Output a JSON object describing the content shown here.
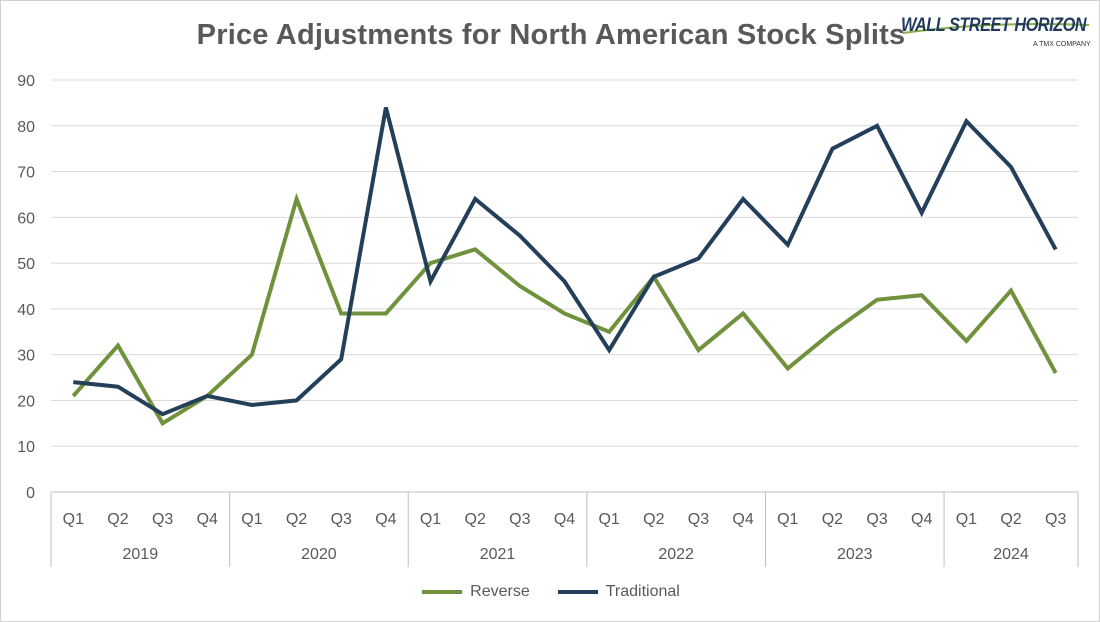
{
  "chart_data": {
    "type": "line",
    "title": "Price Adjustments for North American Stock Splits",
    "categories": [
      "Q1",
      "Q2",
      "Q3",
      "Q4",
      "Q1",
      "Q2",
      "Q3",
      "Q4",
      "Q1",
      "Q2",
      "Q3",
      "Q4",
      "Q1",
      "Q2",
      "Q3",
      "Q4",
      "Q1",
      "Q2",
      "Q3",
      "Q4",
      "Q1",
      "Q2",
      "Q3"
    ],
    "years": [
      {
        "label": "2019",
        "count": 4
      },
      {
        "label": "2020",
        "count": 4
      },
      {
        "label": "2021",
        "count": 4
      },
      {
        "label": "2022",
        "count": 4
      },
      {
        "label": "2023",
        "count": 4
      },
      {
        "label": "2024",
        "count": 3
      }
    ],
    "series": [
      {
        "name": "Reverse",
        "color": "#70923c",
        "values": [
          21,
          32,
          15,
          21,
          30,
          64,
          39,
          39,
          50,
          53,
          45,
          39,
          35,
          47,
          31,
          39,
          27,
          35,
          42,
          43,
          33,
          44,
          26
        ]
      },
      {
        "name": "Traditional",
        "color": "#243f5a",
        "values": [
          24,
          23,
          17,
          21,
          19,
          20,
          29,
          84,
          46,
          64,
          56,
          46,
          31,
          47,
          51,
          64,
          54,
          75,
          80,
          61,
          81,
          71,
          53
        ]
      }
    ],
    "ylim": [
      0,
      90
    ],
    "yticks": [
      0,
      10,
      20,
      30,
      40,
      50,
      60,
      70,
      80,
      90
    ],
    "grid": true,
    "legend_position": "bottom"
  },
  "logo": {
    "name": "WALL STREET HORIZON",
    "sub": "A TMX COMPANY"
  }
}
